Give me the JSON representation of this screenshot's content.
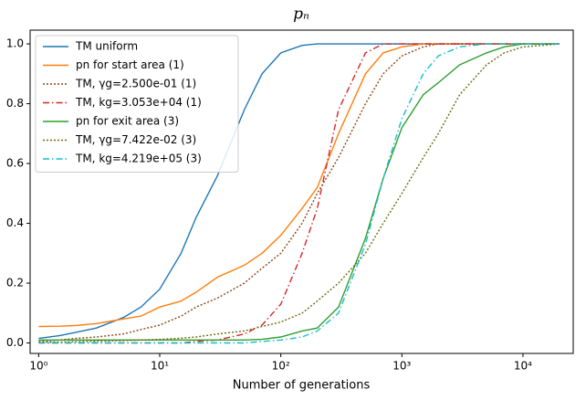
{
  "chart_data": {
    "type": "line",
    "title": "pₙ",
    "x_label": "Number of generations",
    "x_scale": "log",
    "legend": "upper left",
    "xlim": [
      0.85,
      26000
    ],
    "xticks": [
      {
        "value": 1,
        "label": "10⁰"
      },
      {
        "value": 10,
        "label": "10¹"
      },
      {
        "value": 100,
        "label": "10²"
      },
      {
        "value": 1000,
        "label": "10³"
      },
      {
        "value": 10000,
        "label": "10⁴"
      }
    ],
    "ylim": [
      -0.035,
      1.046
    ],
    "yticks": [
      {
        "value": 0,
        "label": "0.0"
      },
      0.2,
      0.4,
      0.6,
      0.8,
      {
        "value": 1,
        "label": "1.0"
      }
    ],
    "x": [
      1,
      1.5,
      2,
      3,
      5,
      7,
      10,
      15,
      20,
      30,
      50,
      70,
      100,
      150,
      200,
      300,
      500,
      700,
      1000,
      1500,
      2000,
      3000,
      5000,
      7000,
      10000,
      20000
    ],
    "series": [
      {
        "name": "TM uniform",
        "color": "#1f77b4",
        "linestyle": "solid",
        "values": [
          0.015,
          0.025,
          0.035,
          0.05,
          0.085,
          0.12,
          0.18,
          0.3,
          0.42,
          0.56,
          0.78,
          0.9,
          0.97,
          0.995,
          1,
          1,
          1,
          1,
          1,
          1,
          1,
          1,
          1,
          1,
          1,
          1
        ]
      },
      {
        "name": "pn for start area (1)",
        "color": "#ff7f0e",
        "linestyle": "solid",
        "values": [
          0.055,
          0.056,
          0.058,
          0.065,
          0.08,
          0.09,
          0.12,
          0.14,
          0.17,
          0.22,
          0.26,
          0.3,
          0.36,
          0.45,
          0.52,
          0.7,
          0.9,
          0.97,
          0.99,
          1,
          1,
          1,
          1,
          1,
          1,
          1
        ]
      },
      {
        "name": "TM, γg=2.500e-01 (1)",
        "color": "#8b4513",
        "linestyle": "dotted",
        "values": [
          0.005,
          0.01,
          0.015,
          0.02,
          0.03,
          0.045,
          0.06,
          0.09,
          0.12,
          0.15,
          0.2,
          0.25,
          0.3,
          0.4,
          0.5,
          0.62,
          0.8,
          0.9,
          0.96,
          0.99,
          1,
          1,
          1,
          1,
          1,
          1
        ]
      },
      {
        "name": "TM, kg=3.053e+04 (1)",
        "color": "#d62728",
        "linestyle": "dashdot",
        "values": [
          0,
          0,
          0,
          0,
          0,
          0,
          0,
          0,
          0.005,
          0.01,
          0.03,
          0.06,
          0.13,
          0.3,
          0.45,
          0.78,
          0.97,
          1,
          1,
          1,
          1,
          1,
          1,
          1,
          1,
          1
        ]
      },
      {
        "name": "pn for exit area (3)",
        "color": "#2ca02c",
        "linestyle": "solid",
        "values": [
          0.01,
          0.01,
          0.01,
          0.01,
          0.01,
          0.01,
          0.01,
          0.01,
          0.01,
          0.01,
          0.01,
          0.012,
          0.02,
          0.04,
          0.05,
          0.12,
          0.35,
          0.55,
          0.72,
          0.83,
          0.87,
          0.93,
          0.97,
          0.99,
          1,
          1
        ]
      },
      {
        "name": "TM, γg=7.422e-02 (3)",
        "color": "#6b6b12",
        "linestyle": "dotted",
        "values": [
          0.002,
          0.003,
          0.004,
          0.006,
          0.008,
          0.01,
          0.012,
          0.016,
          0.02,
          0.03,
          0.04,
          0.055,
          0.07,
          0.1,
          0.14,
          0.2,
          0.3,
          0.4,
          0.5,
          0.62,
          0.7,
          0.83,
          0.93,
          0.97,
          0.99,
          1
        ]
      },
      {
        "name": "TM, kg=4.219e+05 (3)",
        "color": "#17becf",
        "linestyle": "dashdot",
        "values": [
          0,
          0,
          0,
          0,
          0,
          0,
          0,
          0,
          0,
          0,
          0,
          0.005,
          0.01,
          0.02,
          0.04,
          0.1,
          0.33,
          0.55,
          0.75,
          0.9,
          0.96,
          0.99,
          1,
          1,
          1,
          1
        ]
      }
    ]
  }
}
